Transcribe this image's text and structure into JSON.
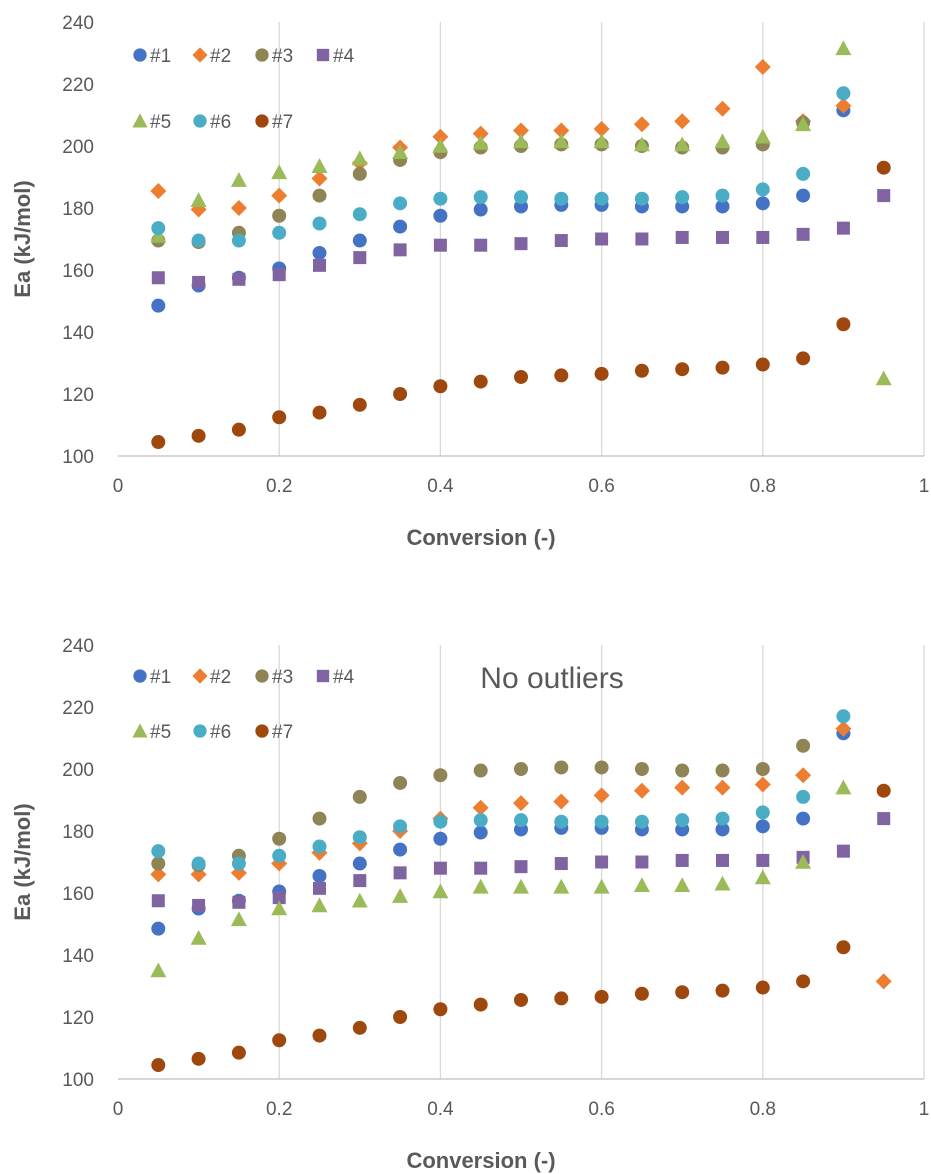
{
  "chart_data": [
    {
      "type": "scatter",
      "xlabel": "Conversion (-)",
      "ylabel": "Ea (kJ/mol)",
      "xlim": [
        0,
        1
      ],
      "ylim": [
        100,
        240
      ],
      "xticks": [
        "0",
        "0.2",
        "0.4",
        "0.6",
        "0.8",
        "1"
      ],
      "yticks": [
        "100",
        "120",
        "140",
        "160",
        "180",
        "200",
        "220",
        "240"
      ],
      "grid": "vertical",
      "legend": "top-left",
      "annotation": "",
      "series": [
        {
          "name": "#1",
          "marker": "circle",
          "color": "#4472C4",
          "x": [
            0.05,
            0.1,
            0.15,
            0.2,
            0.25,
            0.3,
            0.35,
            0.4,
            0.45,
            0.5,
            0.55,
            0.6,
            0.65,
            0.7,
            0.75,
            0.8,
            0.85,
            0.9
          ],
          "y": [
            148.5,
            155,
            157.5,
            160.5,
            165.5,
            169.5,
            174,
            177.5,
            179.5,
            180.5,
            181,
            181,
            180.5,
            180.5,
            180.5,
            181.5,
            184,
            211.5
          ]
        },
        {
          "name": "#2",
          "marker": "diamond",
          "color": "#ED7D31",
          "x": [
            0.05,
            0.1,
            0.15,
            0.2,
            0.25,
            0.3,
            0.35,
            0.4,
            0.45,
            0.5,
            0.55,
            0.6,
            0.65,
            0.7,
            0.75,
            0.8,
            0.85,
            0.9
          ],
          "y": [
            185.5,
            179.5,
            180,
            184,
            189.5,
            194.5,
            199.5,
            203,
            204,
            205,
            205,
            205.5,
            207,
            208,
            212,
            225.5,
            208,
            213
          ]
        },
        {
          "name": "#3",
          "marker": "circle",
          "color": "#8E8455",
          "x": [
            0.05,
            0.1,
            0.15,
            0.2,
            0.25,
            0.3,
            0.35,
            0.4,
            0.45,
            0.5,
            0.55,
            0.6,
            0.65,
            0.7,
            0.75,
            0.8,
            0.85
          ],
          "y": [
            169.5,
            169,
            172,
            177.5,
            184,
            191,
            195.5,
            198,
            199.5,
            200,
            200.5,
            200.5,
            200,
            199.5,
            199.5,
            200.5,
            207.5
          ]
        },
        {
          "name": "#4",
          "marker": "square",
          "color": "#8064A2",
          "x": [
            0.05,
            0.1,
            0.15,
            0.2,
            0.25,
            0.3,
            0.35,
            0.4,
            0.45,
            0.5,
            0.55,
            0.6,
            0.65,
            0.7,
            0.75,
            0.8,
            0.85,
            0.9,
            0.95
          ],
          "y": [
            157.5,
            156,
            157,
            158.5,
            161.5,
            164,
            166.5,
            168,
            168,
            168.5,
            169.5,
            170,
            170,
            170.5,
            170.5,
            170.5,
            171.5,
            173.5,
            184
          ]
        },
        {
          "name": "#5",
          "marker": "triangle",
          "color": "#9BBB59",
          "x": [
            0.05,
            0.1,
            0.15,
            0.2,
            0.25,
            0.3,
            0.35,
            0.4,
            0.45,
            0.5,
            0.55,
            0.6,
            0.65,
            0.7,
            0.75,
            0.8,
            0.85,
            0.9,
            0.95
          ],
          "y": [
            171,
            182.5,
            189,
            191.5,
            193.5,
            196,
            198,
            200,
            201,
            201.5,
            201.5,
            201.5,
            200.5,
            200.5,
            201.5,
            203,
            207,
            231.5,
            125
          ]
        },
        {
          "name": "#6",
          "marker": "circle",
          "color": "#4BACC6",
          "x": [
            0.05,
            0.1,
            0.15,
            0.2,
            0.25,
            0.3,
            0.35,
            0.4,
            0.45,
            0.5,
            0.55,
            0.6,
            0.65,
            0.7,
            0.75,
            0.8,
            0.85,
            0.9
          ],
          "y": [
            173.5,
            169.5,
            169.5,
            172,
            175,
            178,
            181.5,
            183,
            183.5,
            183.5,
            183,
            183,
            183,
            183.5,
            184,
            186,
            191,
            217
          ]
        },
        {
          "name": "#7",
          "marker": "circle",
          "color": "#9E480E",
          "x": [
            0.05,
            0.1,
            0.15,
            0.2,
            0.25,
            0.3,
            0.35,
            0.4,
            0.45,
            0.5,
            0.55,
            0.6,
            0.65,
            0.7,
            0.75,
            0.8,
            0.85,
            0.9,
            0.95
          ],
          "y": [
            104.5,
            106.5,
            108.5,
            112.5,
            114,
            116.5,
            120,
            122.5,
            124,
            125.5,
            126,
            126.5,
            127.5,
            128,
            128.5,
            129.5,
            131.5,
            142.5,
            193
          ]
        }
      ]
    },
    {
      "type": "scatter",
      "xlabel": "Conversion (-)",
      "ylabel": "Ea (kJ/mol)",
      "xlim": [
        0,
        1
      ],
      "ylim": [
        100,
        240
      ],
      "xticks": [
        "0",
        "0.2",
        "0.4",
        "0.6",
        "0.8",
        "1"
      ],
      "yticks": [
        "100",
        "120",
        "140",
        "160",
        "180",
        "200",
        "220",
        "240"
      ],
      "grid": "vertical",
      "legend": "top-left",
      "annotation": "No outliers",
      "series": [
        {
          "name": "#1",
          "marker": "circle",
          "color": "#4472C4",
          "x": [
            0.05,
            0.1,
            0.15,
            0.2,
            0.25,
            0.3,
            0.35,
            0.4,
            0.45,
            0.5,
            0.55,
            0.6,
            0.65,
            0.7,
            0.75,
            0.8,
            0.85,
            0.9
          ],
          "y": [
            148.5,
            155,
            157.5,
            160.5,
            165.5,
            169.5,
            174,
            177.5,
            179.5,
            180.5,
            181,
            181,
            180.5,
            180.5,
            180.5,
            181.5,
            184,
            211.5
          ]
        },
        {
          "name": "#2",
          "marker": "diamond",
          "color": "#ED7D31",
          "x": [
            0.05,
            0.1,
            0.15,
            0.2,
            0.25,
            0.3,
            0.35,
            0.4,
            0.45,
            0.5,
            0.55,
            0.6,
            0.65,
            0.7,
            0.75,
            0.8,
            0.85,
            0.9,
            0.95
          ],
          "y": [
            166,
            166,
            166.5,
            169.5,
            173,
            176,
            180,
            184,
            187.5,
            189,
            189.5,
            191.5,
            193,
            194,
            194,
            195,
            198,
            213,
            131.5
          ]
        },
        {
          "name": "#3",
          "marker": "circle",
          "color": "#8E8455",
          "x": [
            0.05,
            0.1,
            0.15,
            0.2,
            0.25,
            0.3,
            0.35,
            0.4,
            0.45,
            0.5,
            0.55,
            0.6,
            0.65,
            0.7,
            0.75,
            0.8,
            0.85
          ],
          "y": [
            169.5,
            169,
            172,
            177.5,
            184,
            191,
            195.5,
            198,
            199.5,
            200,
            200.5,
            200.5,
            200,
            199.5,
            199.5,
            200,
            207.5
          ]
        },
        {
          "name": "#4",
          "marker": "square",
          "color": "#8064A2",
          "x": [
            0.05,
            0.1,
            0.15,
            0.2,
            0.25,
            0.3,
            0.35,
            0.4,
            0.45,
            0.5,
            0.55,
            0.6,
            0.65,
            0.7,
            0.75,
            0.8,
            0.85,
            0.9,
            0.95
          ],
          "y": [
            157.5,
            156,
            157,
            158.5,
            161.5,
            164,
            166.5,
            168,
            168,
            168.5,
            169.5,
            170,
            170,
            170.5,
            170.5,
            170.5,
            171.5,
            173.5,
            184
          ]
        },
        {
          "name": "#5",
          "marker": "triangle",
          "color": "#9BBB59",
          "x": [
            0.05,
            0.1,
            0.15,
            0.2,
            0.25,
            0.3,
            0.35,
            0.4,
            0.45,
            0.5,
            0.55,
            0.6,
            0.65,
            0.7,
            0.75,
            0.8,
            0.85,
            0.9
          ],
          "y": [
            135,
            145.5,
            151.5,
            155,
            156,
            157.5,
            159,
            160.5,
            162,
            162,
            162,
            162,
            162.5,
            162.5,
            163,
            165,
            170,
            194
          ]
        },
        {
          "name": "#6",
          "marker": "circle",
          "color": "#4BACC6",
          "x": [
            0.05,
            0.1,
            0.15,
            0.2,
            0.25,
            0.3,
            0.35,
            0.4,
            0.45,
            0.5,
            0.55,
            0.6,
            0.65,
            0.7,
            0.75,
            0.8,
            0.85,
            0.9
          ],
          "y": [
            173.5,
            169.5,
            169.5,
            172,
            175,
            178,
            181.5,
            183,
            183.5,
            183.5,
            183,
            183,
            183,
            183.5,
            184,
            186,
            191,
            217
          ]
        },
        {
          "name": "#7",
          "marker": "circle",
          "color": "#9E480E",
          "x": [
            0.05,
            0.1,
            0.15,
            0.2,
            0.25,
            0.3,
            0.35,
            0.4,
            0.45,
            0.5,
            0.55,
            0.6,
            0.65,
            0.7,
            0.75,
            0.8,
            0.85,
            0.9,
            0.95
          ],
          "y": [
            104.5,
            106.5,
            108.5,
            112.5,
            114,
            116.5,
            120,
            122.5,
            124,
            125.5,
            126,
            126.5,
            127.5,
            128,
            128.5,
            129.5,
            131.5,
            142.5,
            193
          ]
        }
      ]
    }
  ]
}
